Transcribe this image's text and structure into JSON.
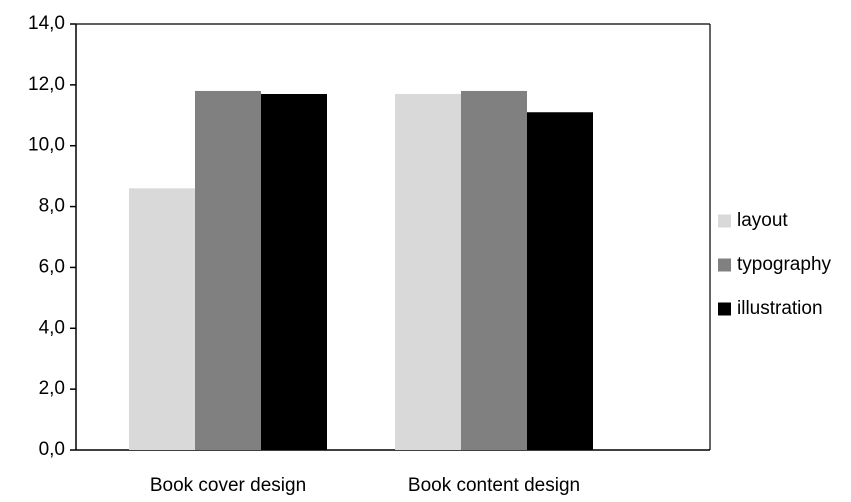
{
  "chart_data": {
    "type": "bar",
    "title": "",
    "xlabel": "",
    "ylabel": "",
    "categories": [
      "Book cover design",
      "Book content design"
    ],
    "series": [
      {
        "name": "layout",
        "color": "#d9d9d9",
        "values": [
          8.6,
          11.7
        ]
      },
      {
        "name": "typography",
        "color": "#808080",
        "values": [
          11.8,
          11.8
        ]
      },
      {
        "name": "illustration",
        "color": "#000000",
        "values": [
          11.7,
          11.1
        ]
      }
    ],
    "ylim": [
      0,
      14
    ],
    "yticks": [
      0,
      2,
      4,
      6,
      8,
      10,
      12,
      14
    ],
    "ytick_labels": [
      "0,0",
      "2,0",
      "4,0",
      "6,0",
      "8,0",
      "10,0",
      "12,0",
      "14,0"
    ],
    "grid": false,
    "legend_position": "right"
  }
}
